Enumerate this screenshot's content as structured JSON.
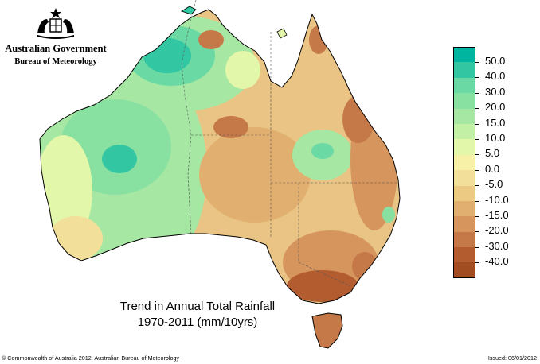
{
  "branding": {
    "government": "Australian Government",
    "bureau": "Bureau of Meteorology",
    "crest_icon": "commonwealth-coat-of-arms"
  },
  "title": {
    "line1": "Trend in Annual Total Rainfall",
    "line2": "1970-2011 (mm/10yrs)"
  },
  "legend": {
    "entries": [
      {
        "label": "50.0",
        "color": "#00b5a0"
      },
      {
        "label": "40.0",
        "color": "#33c6a2"
      },
      {
        "label": "30.0",
        "color": "#6ad9a4"
      },
      {
        "label": "20.0",
        "color": "#88e0a1"
      },
      {
        "label": "15.0",
        "color": "#a6e8a3"
      },
      {
        "label": "10.0",
        "color": "#c2f0a4"
      },
      {
        "label": "5.0",
        "color": "#e2f7a9"
      },
      {
        "label": "0.0",
        "color": "#f6f1a6"
      },
      {
        "label": "-5.0",
        "color": "#f2df9a"
      },
      {
        "label": "-10.0",
        "color": "#ecca84"
      },
      {
        "label": "-15.0",
        "color": "#e1b070"
      },
      {
        "label": "-20.0",
        "color": "#d5955c"
      },
      {
        "label": "-30.0",
        "color": "#c67948"
      },
      {
        "label": "-40.0",
        "color": "#b25c30"
      }
    ],
    "bottom_color": "#a24c22"
  },
  "map": {
    "region": "Australia",
    "ocean_color": "#ffffff",
    "outline_color": "#000000",
    "state_boundary_color": "#555555"
  },
  "footer": {
    "copyright": "© Commonwealth of Australia 2012, Australian Bureau of Meteorology",
    "issued": "Issued: 06/01/2012"
  }
}
